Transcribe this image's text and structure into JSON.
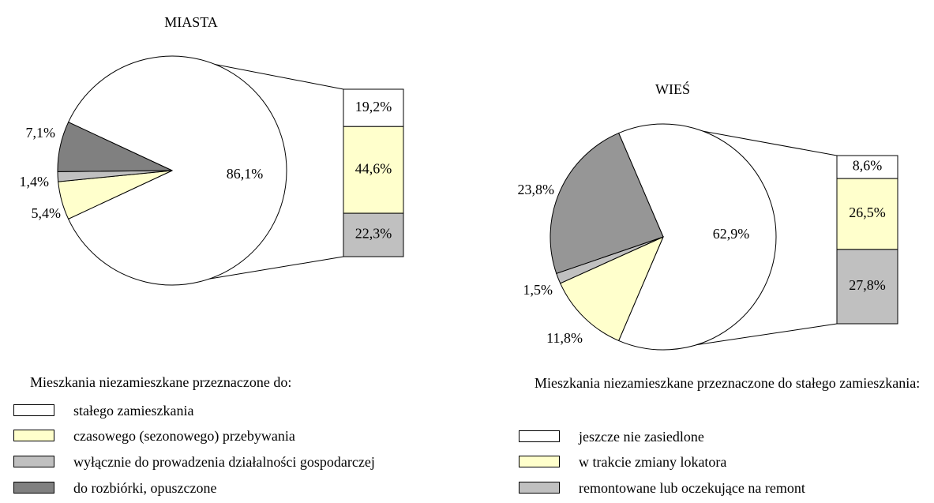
{
  "chart_data": [
    {
      "type": "pie-of-bar",
      "title": "MIASTA",
      "legend_title": "Mieszkania niezamieszkane przeznaczone do:",
      "categories": [
        "stałego zamieszkania",
        "czasowego (sezonowego) przebywania",
        "wyłącznie do prowadzenia działalności gospodarczej",
        "do rozbiórki, opuszczone"
      ],
      "values": [
        86.1,
        5.4,
        1.4,
        7.1
      ],
      "value_labels": [
        "86,1%",
        "5,4%",
        "1,4%",
        "7,1%"
      ],
      "colors": [
        "#ffffff",
        "#ffffcc",
        "#c0c0c0",
        "#808080"
      ],
      "bar": {
        "values": [
          19.2,
          44.6,
          22.3
        ],
        "value_labels": [
          "19,2%",
          "44,6%",
          "22,3%"
        ],
        "colors": [
          "#ffffff",
          "#ffffcc",
          "#c0c0c0"
        ]
      }
    },
    {
      "type": "pie-of-bar",
      "title": "WIEŚ",
      "legend_title": "Mieszkania niezamieszkane przeznaczone do stałego zamieszkania:",
      "values": [
        62.9,
        11.8,
        1.5,
        23.8
      ],
      "value_labels": [
        "62,9%",
        "11,8%",
        "1,5%",
        "23,8%"
      ],
      "colors": [
        "#ffffff",
        "#ffffcc",
        "#c0c0c0",
        "#969696"
      ],
      "bar": {
        "categories": [
          "jeszcze nie zasiedlone",
          "w trakcie zmiany lokatora",
          "remontowane lub oczekujące na remont"
        ],
        "values": [
          8.6,
          26.5,
          27.8
        ],
        "value_labels": [
          "8,6%",
          "26,5%",
          "27,8%"
        ],
        "colors": [
          "#ffffff",
          "#ffffcc",
          "#c0c0c0"
        ]
      }
    }
  ]
}
